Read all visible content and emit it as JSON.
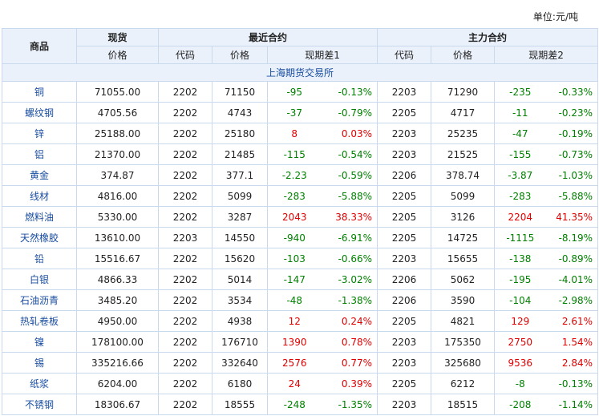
{
  "unit": "单位:元/吨",
  "header": {
    "product": "商品",
    "spot": "现货",
    "spot_price": "价格",
    "near": "最近合约",
    "near_code": "代码",
    "near_price": "价格",
    "near_diff": "现期差1",
    "main": "主力合约",
    "main_code": "代码",
    "main_price": "价格",
    "main_diff": "现期差2"
  },
  "section": "上海期货交易所",
  "rows": [
    [
      "铜",
      "71055.00",
      "2202",
      "71150",
      "-95",
      "-0.13%",
      "2203",
      "71290",
      "-235",
      "-0.33%"
    ],
    [
      "螺纹钢",
      "4705.56",
      "2202",
      "4743",
      "-37",
      "-0.79%",
      "2205",
      "4717",
      "-11",
      "-0.23%"
    ],
    [
      "锌",
      "25188.00",
      "2202",
      "25180",
      "8",
      "0.03%",
      "2203",
      "25235",
      "-47",
      "-0.19%"
    ],
    [
      "铝",
      "21370.00",
      "2202",
      "21485",
      "-115",
      "-0.54%",
      "2203",
      "21525",
      "-155",
      "-0.73%"
    ],
    [
      "黄金",
      "374.87",
      "2202",
      "377.1",
      "-2.23",
      "-0.59%",
      "2206",
      "378.74",
      "-3.87",
      "-1.03%"
    ],
    [
      "线材",
      "4816.00",
      "2202",
      "5099",
      "-283",
      "-5.88%",
      "2205",
      "5099",
      "-283",
      "-5.88%"
    ],
    [
      "燃料油",
      "5330.00",
      "2202",
      "3287",
      "2043",
      "38.33%",
      "2205",
      "3126",
      "2204",
      "41.35%"
    ],
    [
      "天然橡胶",
      "13610.00",
      "2203",
      "14550",
      "-940",
      "-6.91%",
      "2205",
      "14725",
      "-1115",
      "-8.19%"
    ],
    [
      "铅",
      "15516.67",
      "2202",
      "15620",
      "-103",
      "-0.66%",
      "2203",
      "15655",
      "-138",
      "-0.89%"
    ],
    [
      "白银",
      "4866.33",
      "2202",
      "5014",
      "-147",
      "-3.02%",
      "2206",
      "5062",
      "-195",
      "-4.01%"
    ],
    [
      "石油沥青",
      "3485.20",
      "2202",
      "3534",
      "-48",
      "-1.38%",
      "2206",
      "3590",
      "-104",
      "-2.98%"
    ],
    [
      "热轧卷板",
      "4950.00",
      "2202",
      "4938",
      "12",
      "0.24%",
      "2205",
      "4821",
      "129",
      "2.61%"
    ],
    [
      "镍",
      "178100.00",
      "2202",
      "176710",
      "1390",
      "0.78%",
      "2203",
      "175350",
      "2750",
      "1.54%"
    ],
    [
      "锡",
      "335216.66",
      "2202",
      "332640",
      "2576",
      "0.77%",
      "2203",
      "325680",
      "9536",
      "2.84%"
    ],
    [
      "纸浆",
      "6204.00",
      "2202",
      "6180",
      "24",
      "0.39%",
      "2205",
      "6212",
      "-8",
      "-0.13%"
    ],
    [
      "不锈钢",
      "18306.67",
      "2202",
      "18555",
      "-248",
      "-1.35%",
      "2203",
      "18515",
      "-208",
      "-1.14%"
    ]
  ]
}
